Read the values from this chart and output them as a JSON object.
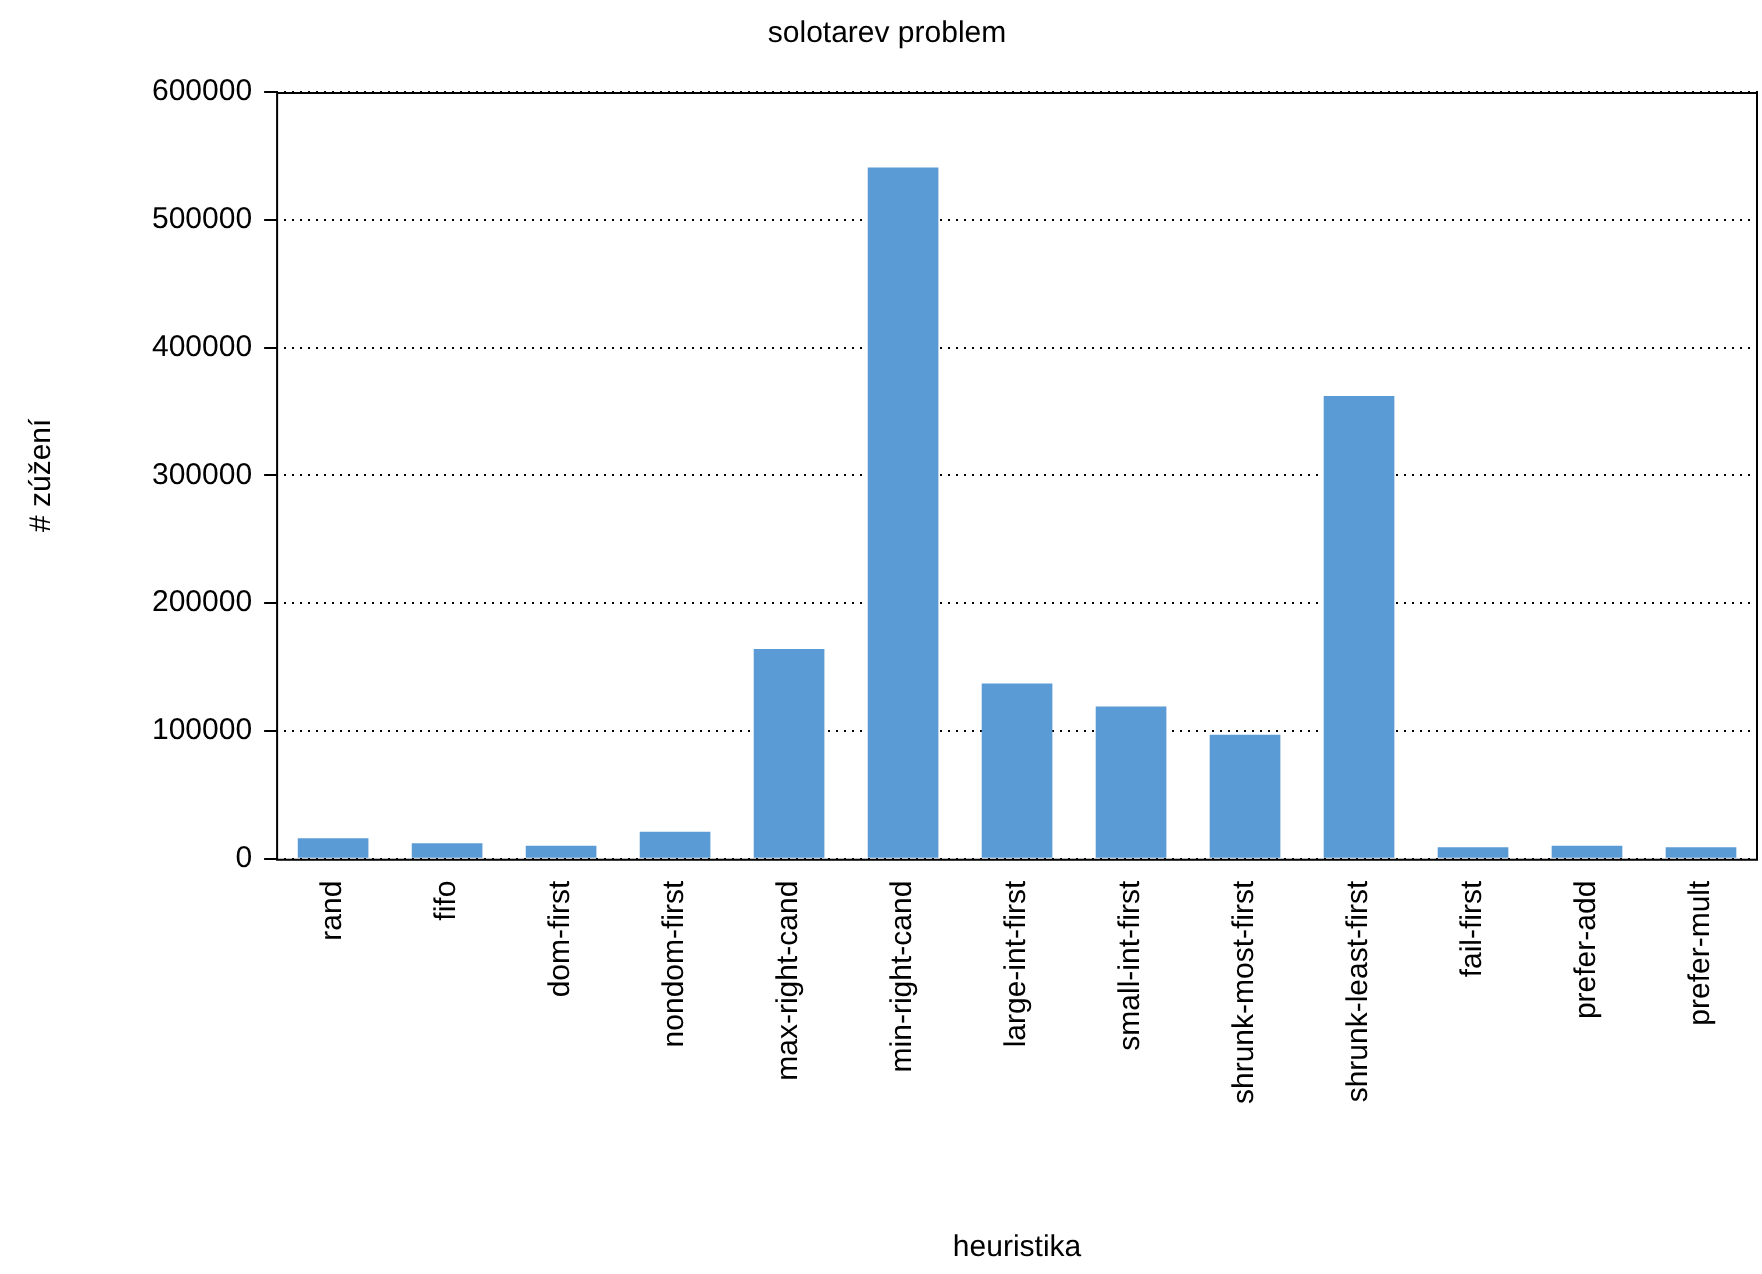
{
  "chart_data": {
    "type": "bar",
    "title": "solotarev problem",
    "xlabel": "heuristika",
    "ylabel": "# zúžení",
    "categories": [
      "rand",
      "fifo",
      "dom-first",
      "nondom-first",
      "max-right-cand",
      "min-right-cand",
      "large-int-first",
      "small-int-first",
      "shrunk-most-first",
      "shrunk-least-first",
      "fail-first",
      "prefer-add",
      "prefer-mult"
    ],
    "values": [
      16000,
      12000,
      10000,
      21000,
      164000,
      541000,
      137000,
      119000,
      97000,
      362000,
      9000,
      10000,
      9000
    ],
    "color": "#5b9bd5",
    "ylim": [
      0,
      600000
    ],
    "yticks": [
      0,
      100000,
      200000,
      300000,
      400000,
      500000,
      600000
    ],
    "grid": "y",
    "legend": false
  }
}
